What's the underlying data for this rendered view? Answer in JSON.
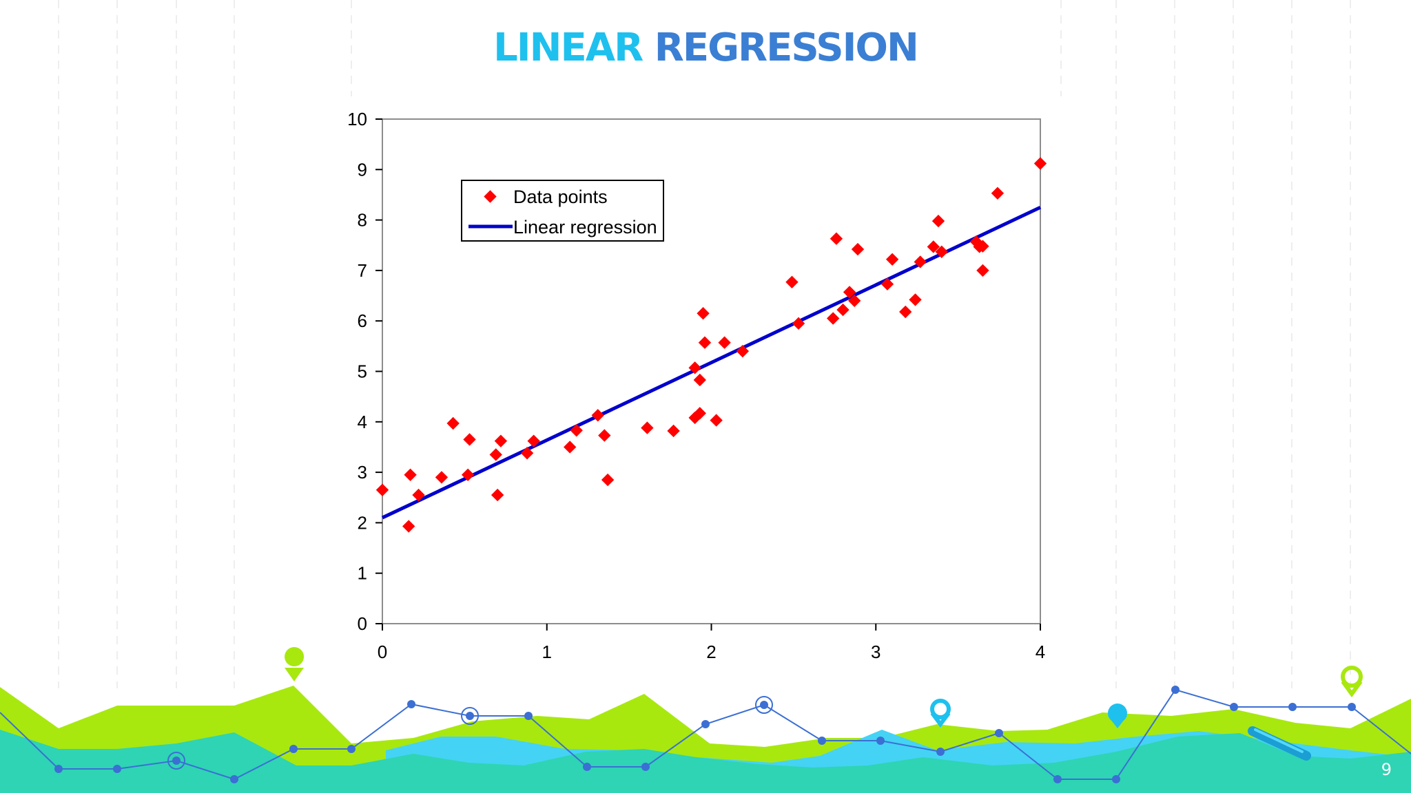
{
  "slide": {
    "title_part1": "LINEAR",
    "title_part2": "REGRESSION",
    "page_number": "9"
  },
  "colors": {
    "title_part1": "#1ec0ee",
    "title_part2": "#3b7fd4",
    "points": "#ff0000",
    "line": "#0000cc",
    "wave_green": "#a8e80f",
    "wave_teal": "#2ed4b4",
    "wave_cyan": "#44d3f4",
    "node_line": "#3b6fd4"
  },
  "chart_data": {
    "type": "scatter",
    "xlim": [
      0,
      4
    ],
    "ylim": [
      0,
      10
    ],
    "x_ticks": [
      "0",
      "1",
      "2",
      "3",
      "4"
    ],
    "y_ticks": [
      "0",
      "1",
      "2",
      "3",
      "4",
      "5",
      "6",
      "7",
      "8",
      "9",
      "10"
    ],
    "legend_position": "top-left",
    "grid": false,
    "series": [
      {
        "name": "Data points",
        "type": "scatter",
        "points": [
          [
            0.0,
            2.65
          ],
          [
            0.16,
            1.93
          ],
          [
            0.17,
            2.95
          ],
          [
            0.22,
            2.55
          ],
          [
            0.36,
            2.9
          ],
          [
            0.43,
            3.97
          ],
          [
            0.52,
            2.95
          ],
          [
            0.53,
            3.65
          ],
          [
            0.69,
            3.35
          ],
          [
            0.7,
            2.55
          ],
          [
            0.72,
            3.62
          ],
          [
            0.88,
            3.38
          ],
          [
            0.92,
            3.62
          ],
          [
            1.14,
            3.5
          ],
          [
            1.18,
            3.83
          ],
          [
            1.31,
            4.13
          ],
          [
            1.35,
            3.73
          ],
          [
            1.37,
            2.85
          ],
          [
            1.61,
            3.88
          ],
          [
            1.77,
            3.82
          ],
          [
            1.9,
            5.07
          ],
          [
            1.9,
            4.08
          ],
          [
            1.93,
            4.83
          ],
          [
            1.93,
            4.17
          ],
          [
            1.95,
            6.15
          ],
          [
            1.96,
            5.57
          ],
          [
            2.03,
            4.03
          ],
          [
            2.08,
            5.57
          ],
          [
            2.19,
            5.4
          ],
          [
            2.49,
            6.77
          ],
          [
            2.53,
            5.95
          ],
          [
            2.74,
            6.05
          ],
          [
            2.76,
            7.63
          ],
          [
            2.8,
            6.22
          ],
          [
            2.84,
            6.57
          ],
          [
            2.87,
            6.4
          ],
          [
            2.89,
            7.42
          ],
          [
            3.07,
            6.73
          ],
          [
            3.1,
            7.22
          ],
          [
            3.18,
            6.18
          ],
          [
            3.24,
            6.42
          ],
          [
            3.27,
            7.17
          ],
          [
            3.35,
            7.47
          ],
          [
            3.38,
            7.98
          ],
          [
            3.4,
            7.37
          ],
          [
            3.61,
            7.57
          ],
          [
            3.63,
            7.47
          ],
          [
            3.65,
            7.48
          ],
          [
            3.65,
            7.0
          ],
          [
            3.74,
            8.53
          ],
          [
            4.0,
            9.12
          ]
        ]
      },
      {
        "name": "Linear regression",
        "type": "line",
        "points": [
          [
            0,
            2.1
          ],
          [
            4,
            8.25
          ]
        ]
      }
    ]
  }
}
